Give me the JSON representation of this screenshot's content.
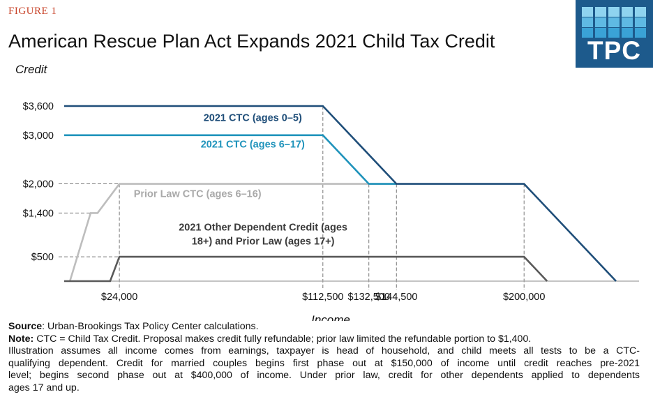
{
  "figure_label": "FIGURE 1",
  "title": "American Rescue Plan Act Expands 2021 Child Tax Credit",
  "logo": {
    "text": "TPC"
  },
  "chart_data": {
    "type": "line",
    "title": "American Rescue Plan Act Expands 2021 Child Tax Credit",
    "xlabel": "Income",
    "ylabel": "Credit",
    "xlim": [
      0,
      250000
    ],
    "ylim": [
      0,
      3600
    ],
    "x_ticks": [
      {
        "value": 24000,
        "label": "$24,000"
      },
      {
        "value": 112500,
        "label": "$112,500"
      },
      {
        "value": 132500,
        "label": "$132,500"
      },
      {
        "value": 144500,
        "label": "$144,500"
      },
      {
        "value": 200000,
        "label": "$200,000"
      }
    ],
    "y_ticks": [
      {
        "value": 500,
        "label": "$500"
      },
      {
        "value": 1400,
        "label": "$1,400"
      },
      {
        "value": 2000,
        "label": "$2,000"
      },
      {
        "value": 3000,
        "label": "$3,000"
      },
      {
        "value": 3600,
        "label": "$3,600"
      }
    ],
    "series": [
      {
        "name": "2021 CTC (ages 0–5)",
        "color": "#1f4e79",
        "points": [
          [
            0,
            3600
          ],
          [
            112500,
            3600
          ],
          [
            144500,
            2000
          ],
          [
            200000,
            2000
          ],
          [
            240000,
            0
          ]
        ]
      },
      {
        "name": "2021 CTC (ages 6–17)",
        "color": "#1f93bb",
        "points": [
          [
            0,
            3000
          ],
          [
            112500,
            3000
          ],
          [
            132500,
            2000
          ],
          [
            144500,
            2000
          ]
        ]
      },
      {
        "name": "Prior Law CTC (ages 6–16)",
        "color": "#bdbdbd",
        "points": [
          [
            2500,
            0
          ],
          [
            11500,
            1400
          ],
          [
            14500,
            1400
          ],
          [
            24000,
            2000
          ],
          [
            144500,
            2000
          ]
        ]
      },
      {
        "name": "2021 Other Dependent Credit (ages 18+) and Prior Law (ages 17+)",
        "color": "#595959",
        "points": [
          [
            0,
            0
          ],
          [
            20000,
            0
          ],
          [
            24000,
            500
          ],
          [
            200000,
            500
          ],
          [
            210000,
            0
          ]
        ]
      }
    ],
    "series_labels": [
      {
        "lines": [
          "2021 CTC (ages 0–5)"
        ],
        "color": "#1f4e79",
        "x": 82000,
        "y": 3290
      },
      {
        "lines": [
          "2021 CTC (ages 6–17)"
        ],
        "color": "#1f93bb",
        "x": 82000,
        "y": 2745
      },
      {
        "lines": [
          "Prior Law CTC (ages 6–16)"
        ],
        "color": "#a9a9a9",
        "x": 58000,
        "y": 1730
      },
      {
        "lines": [
          "2021 Other Dependent Credit (ages",
          "18+) and Prior Law (ages 17+)"
        ],
        "color": "#3a3a3a",
        "x": 86500,
        "y": 1040
      }
    ]
  },
  "notes": {
    "source_label": "Source",
    "source_text": ": Urban-Brookings Tax Policy Center calculations.",
    "note_label": "Note:",
    "note_first": " CTC = Child Tax Credit. Proposal makes credit fully refundable; prior law limited the refundable portion to $1,400.",
    "note_lines": [
      "Illustration assumes all income comes from earnings, taxpayer is head of household, and child meets all tests to be a CTC-",
      "qualifying dependent. Credit for married couples begins first phase out at $150,000 of income until credit reaches pre-2021",
      "level; begins second phase out at $400,000 of income. Under prior law, credit for other dependents applied to dependents",
      "ages 17 and up."
    ]
  }
}
